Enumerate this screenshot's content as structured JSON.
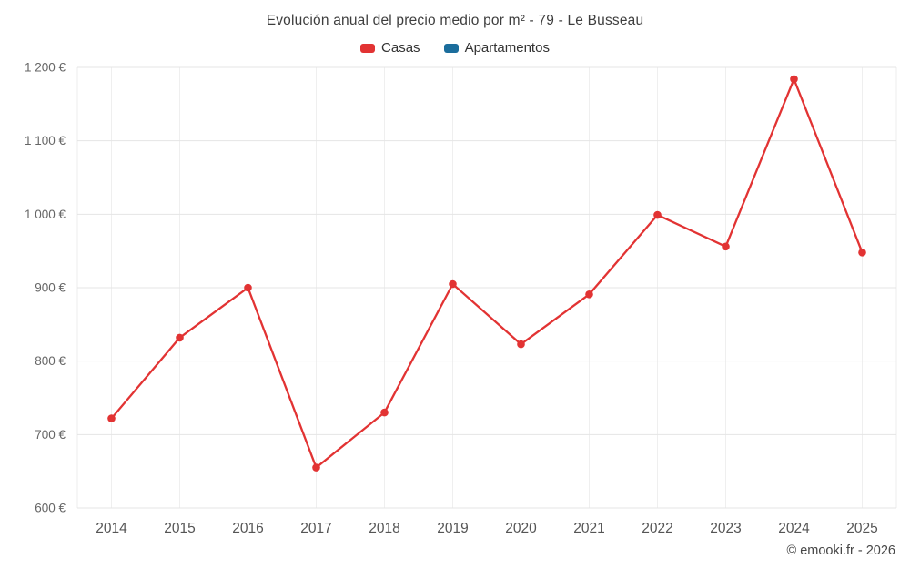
{
  "title": "Evolución anual del precio medio por m² - 79 - Le Busseau",
  "legend": [
    {
      "label": "Casas",
      "color": "#e23333"
    },
    {
      "label": "Apartamentos",
      "color": "#1b6d9c"
    }
  ],
  "footer": "© emooki.fr - 2026",
  "chart_data": {
    "type": "line",
    "title": "Evolución anual del precio medio por m² - 79 - Le Busseau",
    "categories": [
      "2014",
      "2015",
      "2016",
      "2017",
      "2018",
      "2019",
      "2020",
      "2021",
      "2022",
      "2023",
      "2024",
      "2025"
    ],
    "series": [
      {
        "name": "Casas",
        "color": "#e23333",
        "values": [
          722,
          832,
          900,
          655,
          730,
          905,
          823,
          891,
          999,
          956,
          1184,
          948
        ]
      },
      {
        "name": "Apartamentos",
        "color": "#1b6d9c",
        "values": []
      }
    ],
    "ylabel": "",
    "xlabel": "",
    "ylim": [
      600,
      1200
    ],
    "y_ticks": [
      {
        "value": 600,
        "label": "600 €"
      },
      {
        "value": 700,
        "label": "700 €"
      },
      {
        "value": 800,
        "label": "800 €"
      },
      {
        "value": 900,
        "label": "900 €"
      },
      {
        "value": 1000,
        "label": "1 000 €"
      },
      {
        "value": 1100,
        "label": "1 100 €"
      },
      {
        "value": 1200,
        "label": "1 200 €"
      }
    ],
    "grid": true,
    "legend_position": "top"
  }
}
